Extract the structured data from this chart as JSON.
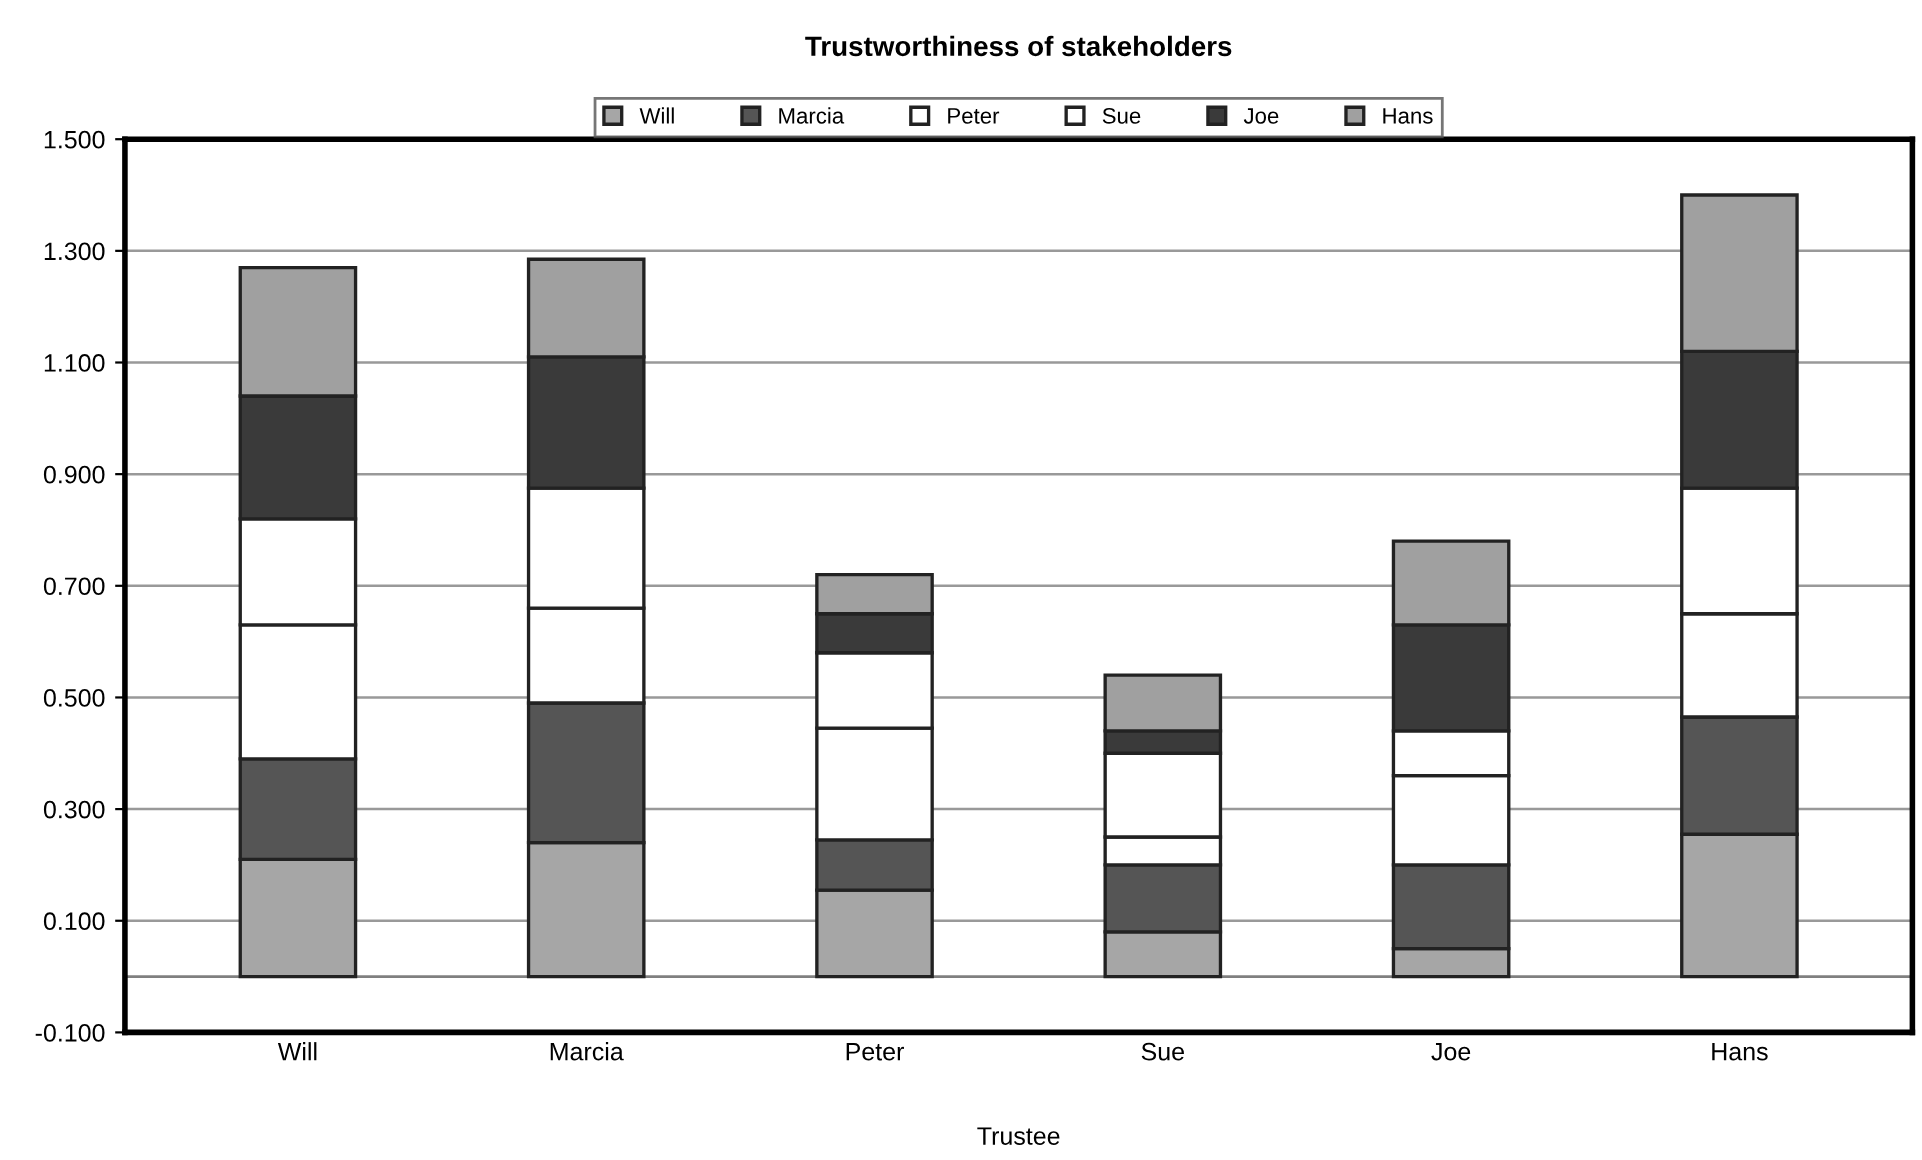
{
  "chart_data": {
    "type": "bar",
    "title": "Trustworthiness of stakeholders",
    "xlabel": "Trustee",
    "categories": [
      "Will",
      "Marcia",
      "Peter",
      "Sue",
      "Joe",
      "Hans"
    ],
    "stacked": true,
    "legend": "top",
    "grid": "y",
    "ylim": [
      -0.1,
      1.5
    ],
    "yticks": [
      {
        "value": -0.1,
        "label": "-0.100"
      },
      {
        "value": 0.1,
        "label": "0.100"
      },
      {
        "value": 0.3,
        "label": "0.300"
      },
      {
        "value": 0.5,
        "label": "0.500"
      },
      {
        "value": 0.7,
        "label": "0.700"
      },
      {
        "value": 0.9,
        "label": "0.900"
      },
      {
        "value": 1.1,
        "label": "1.100"
      },
      {
        "value": 1.3,
        "label": "1.300"
      },
      {
        "value": 1.5,
        "label": "1.500"
      }
    ],
    "ref_lines": [
      {
        "axis": "y",
        "value": 0,
        "color": "#808080"
      }
    ],
    "series": [
      {
        "name": "Will",
        "color": "#a6a6a6",
        "values": [
          0.21,
          0.24,
          0.155,
          0.08,
          0.05,
          0.255
        ]
      },
      {
        "name": "Marcia",
        "color": "#555555",
        "values": [
          0.18,
          0.25,
          0.09,
          0.12,
          0.15,
          0.21
        ]
      },
      {
        "name": "Peter",
        "color": "#ffffff",
        "values": [
          0.24,
          0.17,
          0.2,
          0.05,
          0.16,
          0.185
        ]
      },
      {
        "name": "Sue",
        "color": "#ffffff",
        "values": [
          0.19,
          0.215,
          0.135,
          0.15,
          0.08,
          0.225
        ]
      },
      {
        "name": "Joe",
        "color": "#3a3a3a",
        "values": [
          0.22,
          0.235,
          0.07,
          0.04,
          0.19,
          0.245
        ]
      },
      {
        "name": "Hans",
        "color": "#a0a0a0",
        "values": [
          0.23,
          0.175,
          0.07,
          0.1,
          0.15,
          0.28
        ]
      }
    ]
  }
}
